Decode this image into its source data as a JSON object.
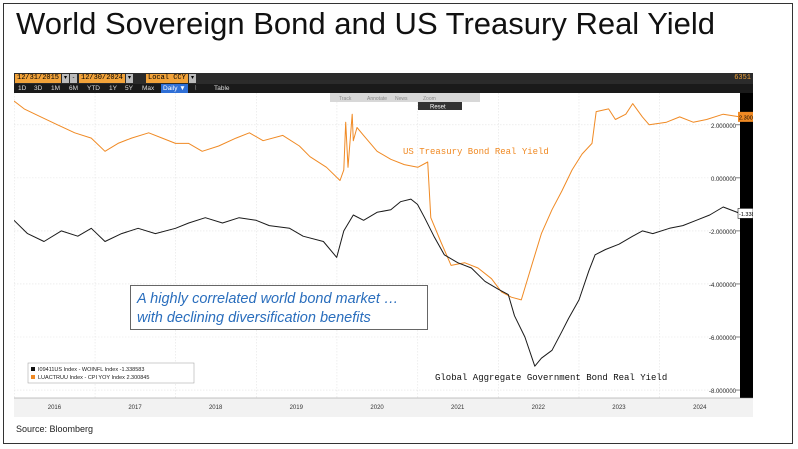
{
  "slide": {
    "title": "World Sovereign Bond and US Treasury Real Yield",
    "source": "Source:  Bloomberg"
  },
  "terminal": {
    "start_date": "12/31/2015",
    "end_date": "12/30/2024",
    "currency": "Local CCY",
    "corner_tag": "6351",
    "periods": [
      "1D",
      "3D",
      "1M",
      "6M",
      "YTD",
      "1Y",
      "5Y",
      "Max"
    ],
    "frequency": "Daily",
    "table_label": "Table",
    "tool_buttons": [
      "Track",
      "Annotate",
      "News",
      "Zoom"
    ],
    "reset_label": "Reset"
  },
  "callout": {
    "line1": "A highly correlated world bond market …",
    "line2": "with declining diversification benefits"
  },
  "colors": {
    "orange": "#f08a24",
    "black_series": "#1a1a1a",
    "callout_text": "#2a6ebd",
    "toolbar_orange": "#f2a33a"
  },
  "chart_data": {
    "type": "line",
    "title": "",
    "xlabel": "",
    "ylabel": "",
    "x_ticks": [
      "2016",
      "2017",
      "2018",
      "2019",
      "2020",
      "2021",
      "2022",
      "2023",
      "2024"
    ],
    "y_ticks": [
      "2.000000",
      "0.000000",
      "-2.000000",
      "-4.000000",
      "-6.000000",
      "-8.000000"
    ],
    "xlim": [
      "2015-12-31",
      "2024-12-30"
    ],
    "ylim": [
      -8.3,
      3.2
    ],
    "grid": true,
    "legend": {
      "placement": "bottom-left",
      "entries": [
        "I09411US Index - WOINFL Index -1.338583",
        "LUACTRUU Index - CPI YOY Index  2.300845"
      ]
    },
    "annotations": [
      "US Treasury Bond Real Yield",
      "Global Aggregate Government Bond Real Yield"
    ],
    "last_value_labels": [
      "2.300845",
      "-1.338583"
    ],
    "series": [
      {
        "name": "LUACTRUU Index - CPI YOY Index",
        "color": "#f08a24",
        "points": [
          [
            "2015-12-31",
            2.9
          ],
          [
            "2016-02-15",
            2.6
          ],
          [
            "2016-05-01",
            2.3
          ],
          [
            "2016-07-15",
            2.0
          ],
          [
            "2016-10-01",
            1.7
          ],
          [
            "2016-12-15",
            1.5
          ],
          [
            "2017-02-15",
            1.0
          ],
          [
            "2017-04-15",
            1.3
          ],
          [
            "2017-06-15",
            1.5
          ],
          [
            "2017-09-01",
            1.7
          ],
          [
            "2017-11-01",
            1.5
          ],
          [
            "2017-12-31",
            1.3
          ],
          [
            "2018-03-01",
            1.3
          ],
          [
            "2018-05-01",
            1.0
          ],
          [
            "2018-07-15",
            1.2
          ],
          [
            "2018-10-01",
            1.5
          ],
          [
            "2018-12-01",
            1.7
          ],
          [
            "2019-02-01",
            1.4
          ],
          [
            "2019-05-01",
            1.6
          ],
          [
            "2019-07-15",
            1.2
          ],
          [
            "2019-09-01",
            0.8
          ],
          [
            "2019-11-15",
            0.4
          ],
          [
            "2020-01-15",
            -0.1
          ],
          [
            "2020-02-01",
            0.3
          ],
          [
            "2020-02-10",
            2.1
          ],
          [
            "2020-02-20",
            0.4
          ],
          [
            "2020-03-10",
            2.4
          ],
          [
            "2020-03-15",
            1.4
          ],
          [
            "2020-04-01",
            1.9
          ],
          [
            "2020-05-01",
            1.6
          ],
          [
            "2020-07-01",
            1.0
          ],
          [
            "2020-09-01",
            0.7
          ],
          [
            "2020-11-01",
            0.5
          ],
          [
            "2021-01-01",
            0.4
          ],
          [
            "2021-02-15",
            0.6
          ],
          [
            "2021-03-01",
            -1.5
          ],
          [
            "2021-04-15",
            -2.4
          ],
          [
            "2021-06-01",
            -3.3
          ],
          [
            "2021-08-01",
            -3.2
          ],
          [
            "2021-10-01",
            -3.4
          ],
          [
            "2021-12-01",
            -3.8
          ],
          [
            "2022-01-15",
            -4.3
          ],
          [
            "2022-03-01",
            -4.5
          ],
          [
            "2022-04-15",
            -4.6
          ],
          [
            "2022-06-01",
            -3.3
          ],
          [
            "2022-07-15",
            -2.1
          ],
          [
            "2022-09-01",
            -1.2
          ],
          [
            "2022-10-15",
            -0.5
          ],
          [
            "2022-12-01",
            0.3
          ],
          [
            "2023-01-15",
            0.9
          ],
          [
            "2023-03-01",
            1.3
          ],
          [
            "2023-03-20",
            2.5
          ],
          [
            "2023-05-15",
            2.6
          ],
          [
            "2023-06-15",
            2.2
          ],
          [
            "2023-08-01",
            2.4
          ],
          [
            "2023-09-01",
            2.8
          ],
          [
            "2023-10-15",
            2.3
          ],
          [
            "2023-11-15",
            2.0
          ],
          [
            "2024-02-01",
            2.1
          ],
          [
            "2024-04-01",
            2.3
          ],
          [
            "2024-06-01",
            2.1
          ],
          [
            "2024-08-01",
            2.2
          ],
          [
            "2024-10-15",
            2.4
          ],
          [
            "2024-12-30",
            2.3
          ]
        ]
      },
      {
        "name": "I09411US Index - WOINFL Index",
        "color": "#1a1a1a",
        "points": [
          [
            "2015-12-31",
            -1.6
          ],
          [
            "2016-03-01",
            -2.1
          ],
          [
            "2016-05-15",
            -2.4
          ],
          [
            "2016-08-01",
            -2.0
          ],
          [
            "2016-10-15",
            -2.2
          ],
          [
            "2016-12-15",
            -1.9
          ],
          [
            "2017-02-15",
            -2.4
          ],
          [
            "2017-05-01",
            -2.1
          ],
          [
            "2017-07-15",
            -1.9
          ],
          [
            "2017-10-01",
            -2.1
          ],
          [
            "2017-12-31",
            -1.9
          ],
          [
            "2018-03-01",
            -1.7
          ],
          [
            "2018-05-15",
            -1.5
          ],
          [
            "2018-08-01",
            -1.7
          ],
          [
            "2018-10-15",
            -1.5
          ],
          [
            "2018-12-31",
            -1.6
          ],
          [
            "2019-03-01",
            -1.8
          ],
          [
            "2019-06-01",
            -1.9
          ],
          [
            "2019-08-01",
            -2.2
          ],
          [
            "2019-11-01",
            -2.4
          ],
          [
            "2019-12-31",
            -3.0
          ],
          [
            "2020-02-01",
            -2.0
          ],
          [
            "2020-03-15",
            -1.4
          ],
          [
            "2020-05-01",
            -1.6
          ],
          [
            "2020-07-01",
            -1.3
          ],
          [
            "2020-09-01",
            -1.2
          ],
          [
            "2020-10-15",
            -0.9
          ],
          [
            "2020-12-01",
            -0.8
          ],
          [
            "2020-12-31",
            -1.0
          ],
          [
            "2021-02-01",
            -1.5
          ],
          [
            "2021-03-15",
            -2.2
          ],
          [
            "2021-05-01",
            -2.9
          ],
          [
            "2021-07-01",
            -3.2
          ],
          [
            "2021-09-01",
            -3.4
          ],
          [
            "2021-11-01",
            -3.9
          ],
          [
            "2022-01-01",
            -4.2
          ],
          [
            "2022-02-15",
            -4.4
          ],
          [
            "2022-03-15",
            -5.2
          ],
          [
            "2022-05-01",
            -6.0
          ],
          [
            "2022-06-15",
            -7.1
          ],
          [
            "2022-07-15",
            -6.8
          ],
          [
            "2022-09-01",
            -6.5
          ],
          [
            "2022-10-15",
            -5.8
          ],
          [
            "2022-11-15",
            -5.3
          ],
          [
            "2023-01-01",
            -4.6
          ],
          [
            "2023-02-15",
            -3.5
          ],
          [
            "2023-03-15",
            -2.9
          ],
          [
            "2023-05-01",
            -2.7
          ],
          [
            "2023-07-01",
            -2.5
          ],
          [
            "2023-09-01",
            -2.2
          ],
          [
            "2023-10-15",
            -2.0
          ],
          [
            "2023-12-01",
            -2.1
          ],
          [
            "2024-02-15",
            -1.9
          ],
          [
            "2024-04-15",
            -1.8
          ],
          [
            "2024-06-15",
            -1.6
          ],
          [
            "2024-08-15",
            -1.4
          ],
          [
            "2024-10-15",
            -1.1
          ],
          [
            "2024-12-30",
            -1.34
          ]
        ]
      }
    ]
  }
}
